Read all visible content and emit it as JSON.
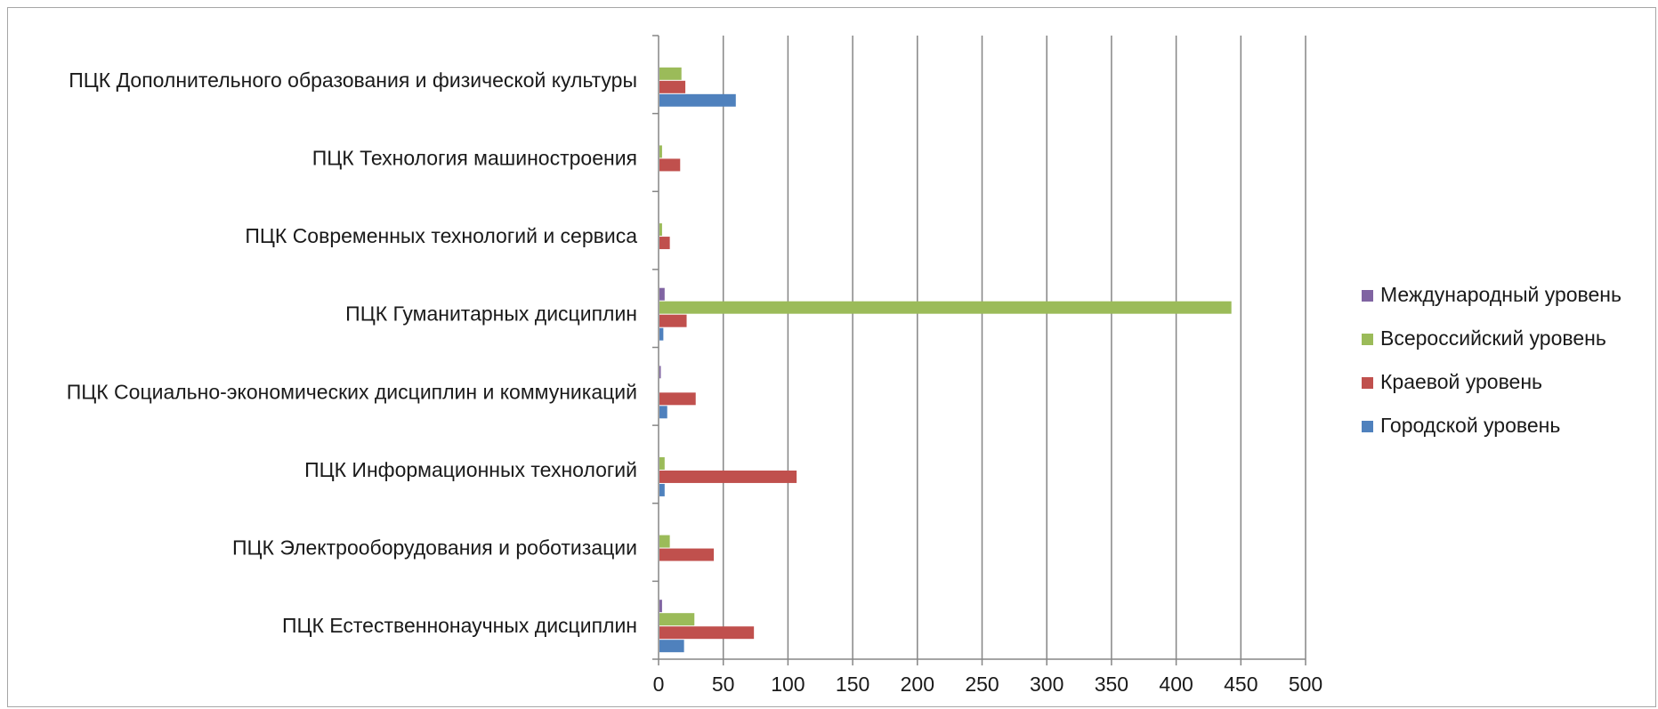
{
  "chart_data": {
    "type": "bar",
    "orientation": "horizontal",
    "categories": [
      "ПЦК Естественнонаучных дисциплин",
      "ПЦК Электрооборудования и роботизации",
      "ПЦК Информационных технологий",
      "ПЦК Социально-экономических дисциплин и коммуникаций",
      "ПЦК Гуманитарных дисциплин",
      "ПЦК Современных технологий и сервиса",
      "ПЦК Технология машиностроения",
      "ПЦК Дополнительного образования и физической культуры"
    ],
    "series": [
      {
        "name": "Городской уровень",
        "color": "#4f81bd",
        "values": [
          19,
          0,
          4,
          6,
          3,
          0,
          0,
          59
        ]
      },
      {
        "name": "Краевой уровень",
        "color": "#c0504d",
        "values": [
          73,
          42,
          106,
          28,
          21,
          8,
          16,
          20
        ]
      },
      {
        "name": "Всероссийский уровень",
        "color": "#9bbb59",
        "values": [
          27,
          8,
          4,
          0,
          442,
          2,
          2,
          17
        ]
      },
      {
        "name": "Международный уровень",
        "color": "#8064a2",
        "values": [
          2,
          0,
          0,
          1,
          4,
          0,
          0,
          0
        ]
      }
    ],
    "xlim": [
      0,
      500
    ],
    "xticks": [
      "0",
      "50",
      "100",
      "150",
      "200",
      "250",
      "300",
      "350",
      "400",
      "450",
      "500"
    ],
    "grid": true,
    "legend_position": "right",
    "legend_order": [
      "Международный уровень",
      "Всероссийский уровень",
      "Краевой уровень",
      "Городской уровень"
    ]
  }
}
